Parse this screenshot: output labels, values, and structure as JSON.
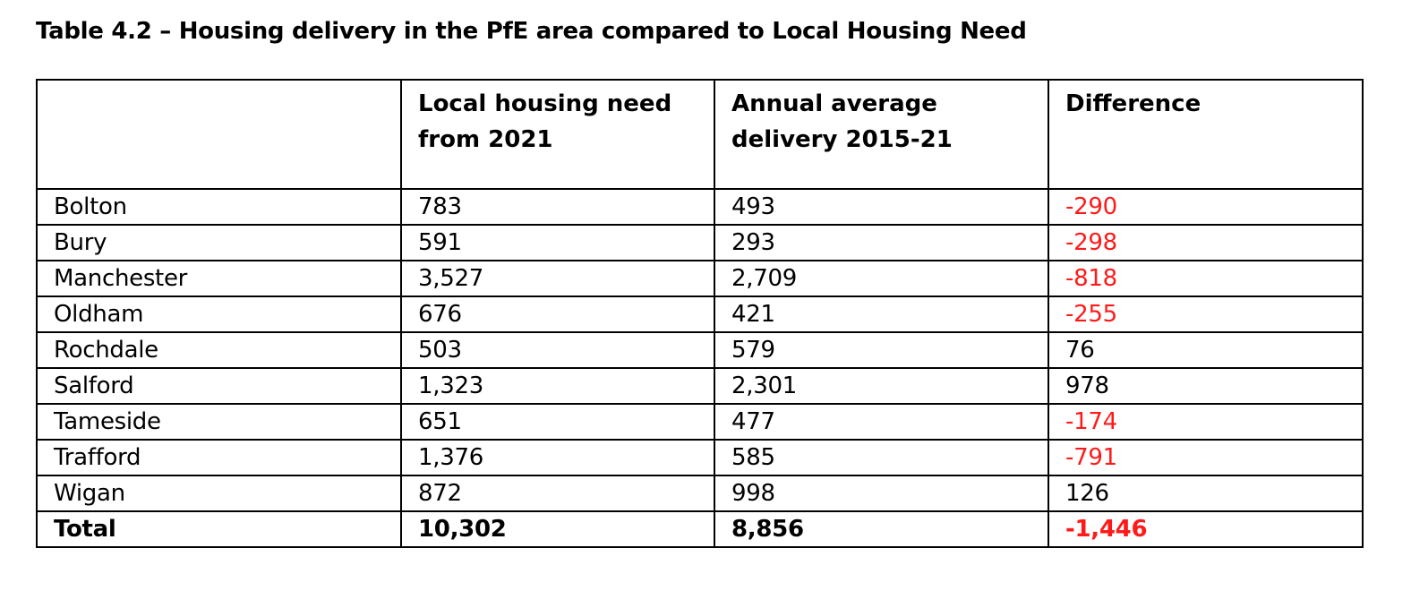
{
  "title": "Table 4.2 – Housing delivery in the PfE area compared to Local Housing Need",
  "colors": {
    "negative": "#ff1a1a"
  },
  "table": {
    "headers": [
      "",
      "Local housing need from 2021",
      "Annual average delivery 2015-21",
      "Difference"
    ],
    "rows": [
      {
        "area": "Bolton",
        "need": "783",
        "delivery": "493",
        "difference": "-290"
      },
      {
        "area": "Bury",
        "need": "591",
        "delivery": "293",
        "difference": "-298"
      },
      {
        "area": "Manchester",
        "need": "3,527",
        "delivery": "2,709",
        "difference": "-818"
      },
      {
        "area": "Oldham",
        "need": "676",
        "delivery": "421",
        "difference": "-255"
      },
      {
        "area": "Rochdale",
        "need": "503",
        "delivery": "579",
        "difference": "76"
      },
      {
        "area": "Salford",
        "need": "1,323",
        "delivery": "2,301",
        "difference": "978"
      },
      {
        "area": "Tameside",
        "need": "651",
        "delivery": "477",
        "difference": "-174"
      },
      {
        "area": "Trafford",
        "need": "1,376",
        "delivery": "585",
        "difference": "-791"
      },
      {
        "area": "Wigan",
        "need": "872",
        "delivery": "998",
        "difference": "126"
      }
    ],
    "total": {
      "area": "Total",
      "need": "10,302",
      "delivery": "8,856",
      "difference": "-1,446"
    }
  }
}
